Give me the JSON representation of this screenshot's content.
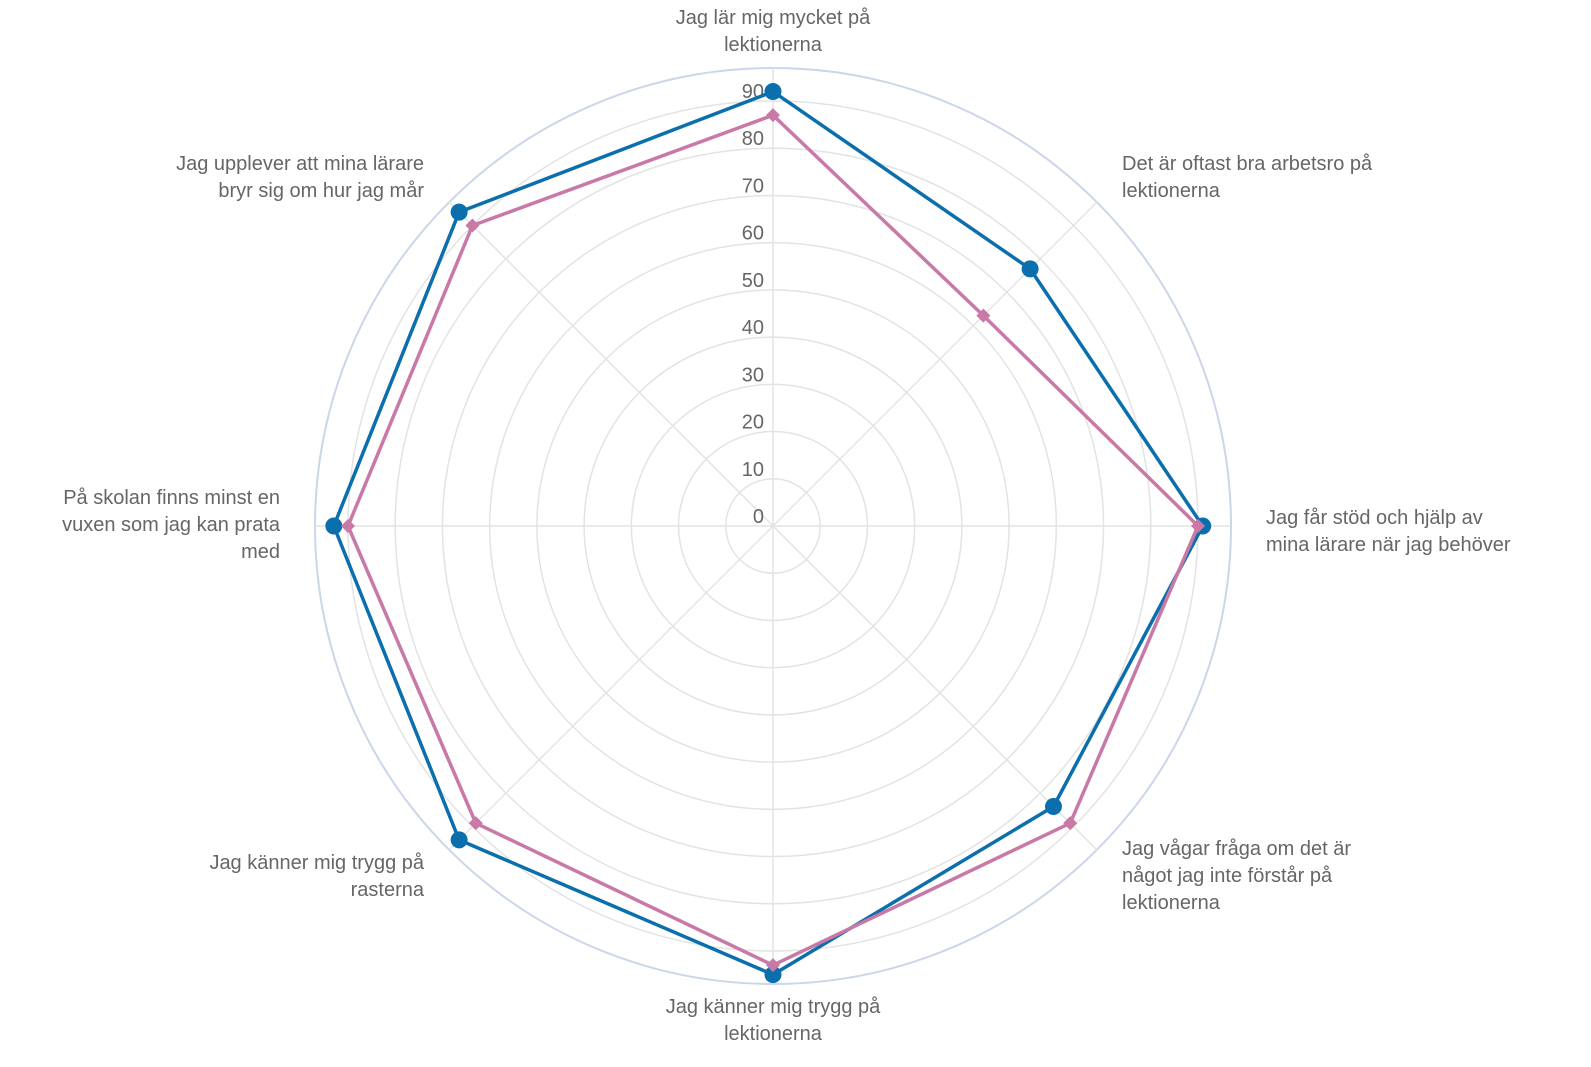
{
  "chart_data": {
    "type": "radar",
    "title": "",
    "categories": [
      "Jag lär mig mycket på\nlektionerna",
      "Det är oftast bra arbetsro på\nlektionerna",
      "Jag får stöd och hjälp av\nmina lärare när jag behöver",
      "Jag vågar fråga om det är\nnågot jag inte förstår på\nlektionerna",
      "Jag känner mig trygg på\nlektionerna",
      "Jag känner mig trygg på\nrasterna",
      "På skolan finns minst en\nvuxen som jag kan prata\nmed",
      "Jag upplever att mina lärare\nbryr sig om hur jag mår"
    ],
    "radial_ticks": [
      "0",
      "10",
      "20",
      "30",
      "40",
      "50",
      "60",
      "70",
      "80",
      "90"
    ],
    "rlim": [
      0,
      90
    ],
    "grid": true,
    "series": [
      {
        "color": "#0b6fad",
        "marker": "circle",
        "values": [
          92,
          77,
          91,
          84,
          95,
          94,
          93,
          94
        ]
      },
      {
        "color": "#c879a6",
        "marker": "diamond",
        "values": [
          87,
          63,
          90,
          89,
          93,
          89,
          90,
          90
        ]
      }
    ]
  }
}
